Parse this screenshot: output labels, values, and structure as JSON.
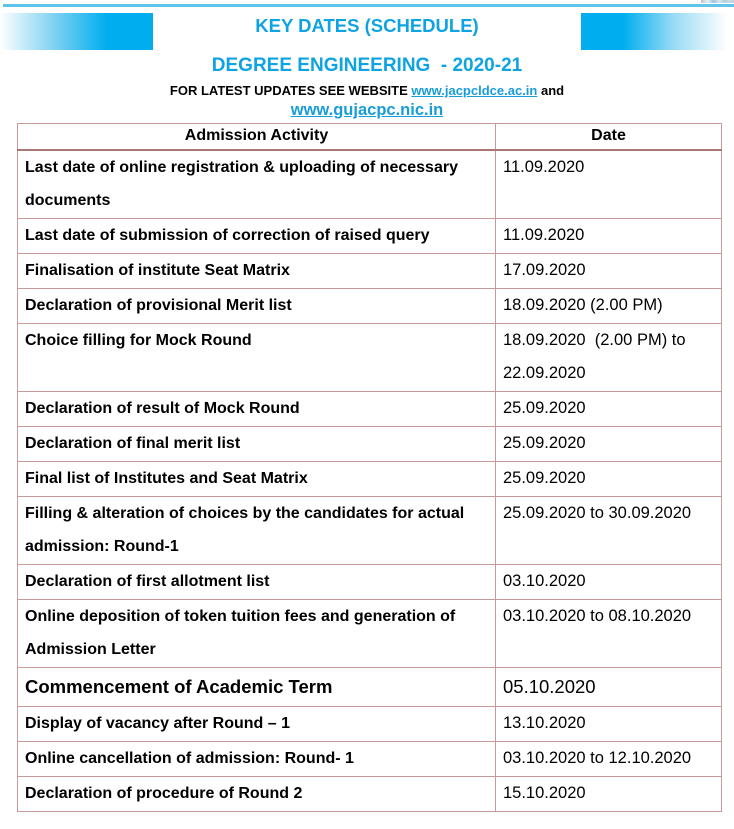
{
  "header": {
    "title": "KEY DATES (SCHEDULE)",
    "subtitle": "DEGREE ENGINEERING  - 2020-21",
    "updates_prefix": "FOR LATEST UPDATES SEE WEBSITE ",
    "updates_link1": "www.jacpcldce.ac.in",
    "updates_suffix": " and",
    "updates_link2": "www.gujacpc.nic.in"
  },
  "colors": {
    "heading_blue": "#0ea3e2",
    "link_blue": "#189dd8",
    "bar_cyan": "#00aeef",
    "top_rule_cyan": "#5ec4e8",
    "table_border": "#c79999",
    "table_border_strong": "#a87676",
    "text": "#000000"
  },
  "table": {
    "headers": [
      "Admission Activity",
      "Date"
    ],
    "rows": [
      {
        "activity": "Last date of online registration & uploading of necessary\ndocuments",
        "date": "11.09.2020"
      },
      {
        "activity": "Last date of submission of correction of raised query",
        "date": "11.09.2020"
      },
      {
        "activity": "Finalisation of institute Seat Matrix",
        "date": "17.09.2020"
      },
      {
        "activity": "Declaration of provisional Merit list",
        "date": "18.09.2020 (2.00 PM)"
      },
      {
        "activity": "Choice filling for Mock Round",
        "date": "18.09.2020  (2.00 PM) to\n22.09.2020"
      },
      {
        "activity": "Declaration of result of Mock Round",
        "date": "25.09.2020"
      },
      {
        "activity": "Declaration of final merit list",
        "date": "25.09.2020"
      },
      {
        "activity": "Final list of Institutes and Seat Matrix",
        "date": "25.09.2020"
      },
      {
        "activity": "Filling & alteration of choices by the candidates for actual\nadmission: Round-1",
        "date": "25.09.2020 to 30.09.2020"
      },
      {
        "activity": "Declaration of first allotment list",
        "date": "03.10.2020"
      },
      {
        "activity": "Online deposition of token tuition fees and generation of\nAdmission Letter",
        "date": "03.10.2020 to 08.10.2020"
      },
      {
        "activity": "Commencement of Academic Term",
        "date": "05.10.2020",
        "emphasis": true
      },
      {
        "activity": "Display of vacancy after Round – 1",
        "date": "13.10.2020"
      },
      {
        "activity": "Online cancellation of admission: Round- 1",
        "date": "03.10.2020 to 12.10.2020"
      },
      {
        "activity": "Declaration of procedure of Round 2",
        "date": "15.10.2020"
      }
    ]
  }
}
